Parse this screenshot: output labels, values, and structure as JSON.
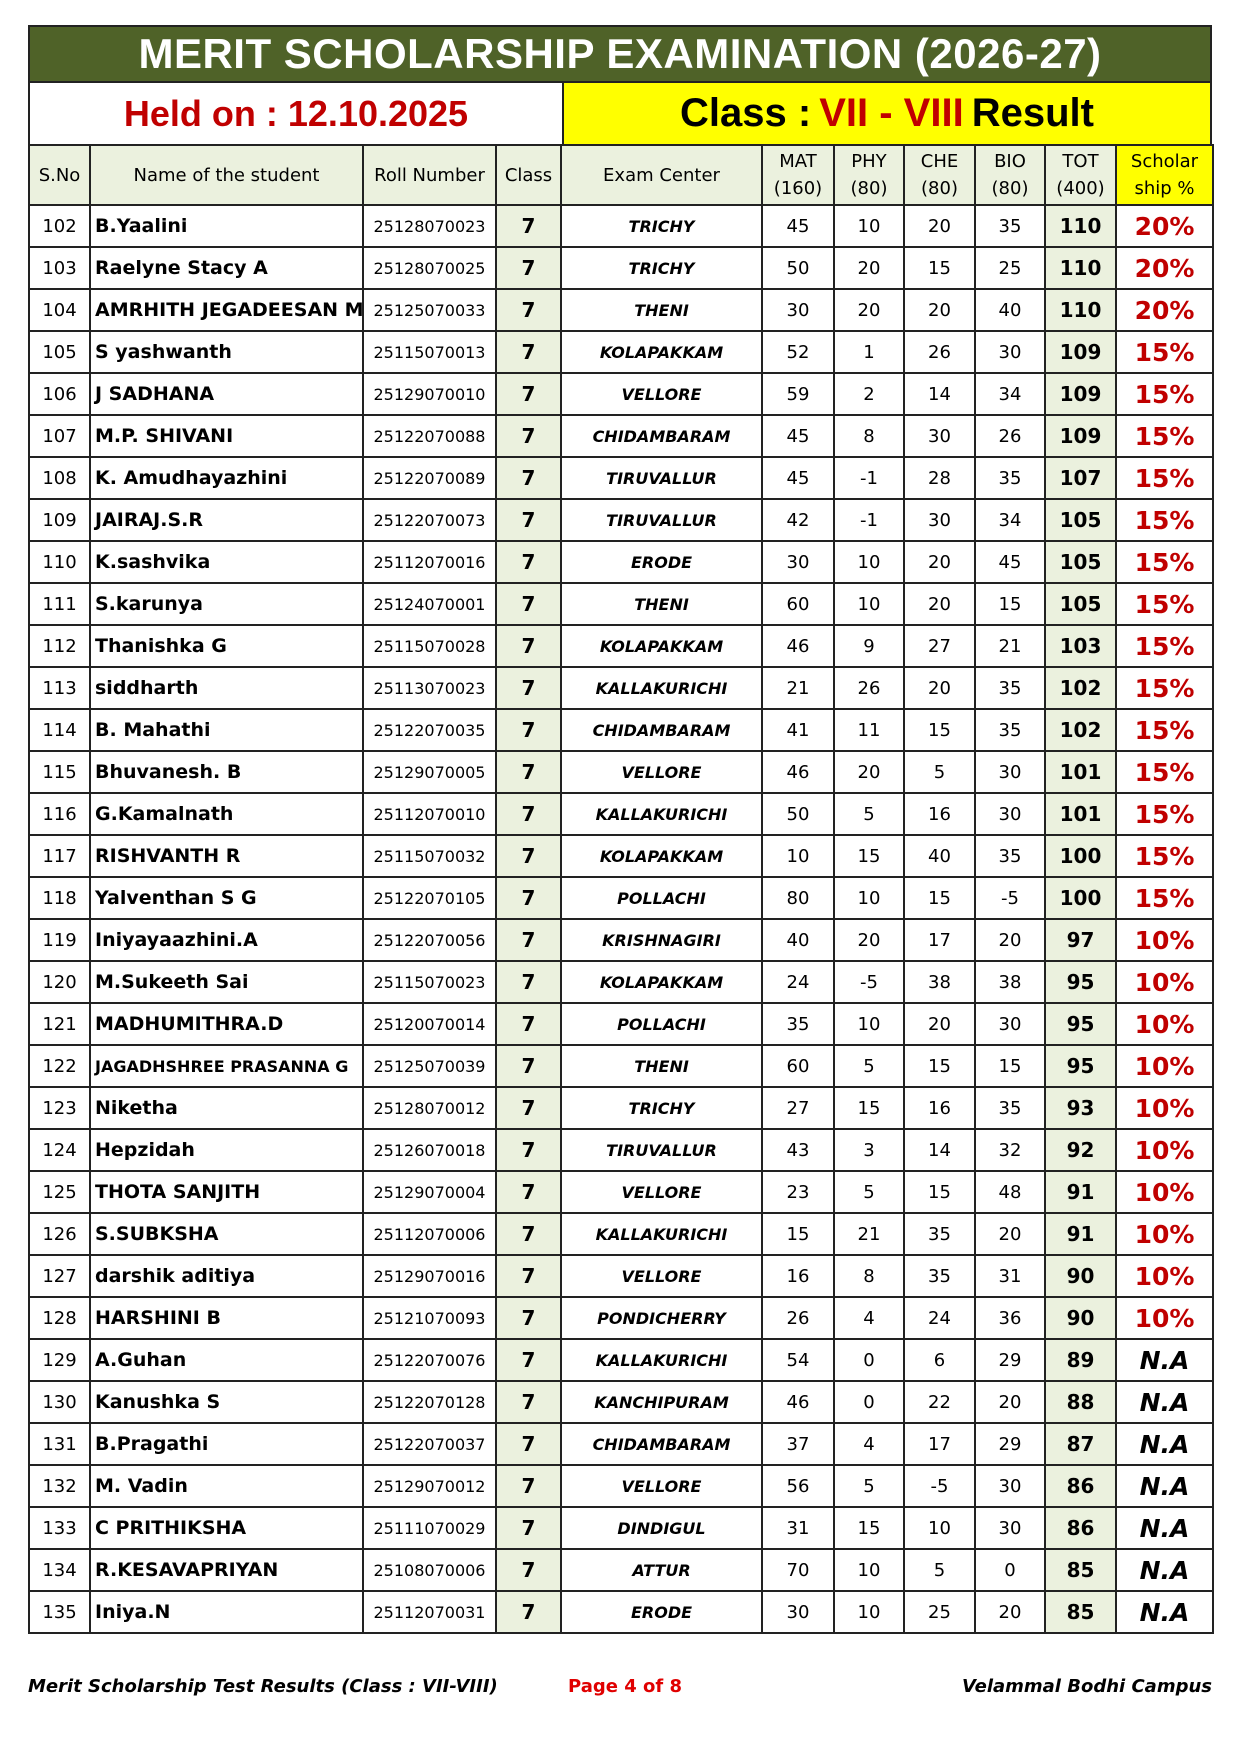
{
  "title": "MERIT SCHOLARSHIP EXAMINATION (2026-27)",
  "held_on": "Held on : 12.10.2025",
  "class_banner": {
    "prefix": "Class :",
    "classes": "VII - VIII",
    "suffix": "Result"
  },
  "headers": [
    "S.No",
    "Name of the student",
    "Roll Number",
    "Class",
    "Exam Center",
    "MAT (160)",
    "PHY (80)",
    "CHE (80)",
    "BIO (80)",
    "TOT (400)",
    "Scholar ship %"
  ],
  "colors": {
    "title_bg": "#4f6228",
    "banner_yellow": "#ffff00",
    "accent_red": "#c00000",
    "header_bg": "#ebf1de"
  },
  "rows": [
    [
      "102",
      "B.Yaalini",
      "25128070023",
      "7",
      "TRICHY",
      "45",
      "10",
      "20",
      "35",
      "110",
      "20%"
    ],
    [
      "103",
      "Raelyne Stacy A",
      "25128070025",
      "7",
      "TRICHY",
      "50",
      "20",
      "15",
      "25",
      "110",
      "20%"
    ],
    [
      "104",
      "AMRHITH JEGADEESAN M",
      "25125070033",
      "7",
      "THENI",
      "30",
      "20",
      "20",
      "40",
      "110",
      "20%"
    ],
    [
      "105",
      "S yashwanth",
      "25115070013",
      "7",
      "KOLAPAKKAM",
      "52",
      "1",
      "26",
      "30",
      "109",
      "15%"
    ],
    [
      "106",
      "J SADHANA",
      "25129070010",
      "7",
      "VELLORE",
      "59",
      "2",
      "14",
      "34",
      "109",
      "15%"
    ],
    [
      "107",
      "M.P. SHIVANI",
      "25122070088",
      "7",
      "CHIDAMBARAM",
      "45",
      "8",
      "30",
      "26",
      "109",
      "15%"
    ],
    [
      "108",
      "K. Amudhayazhini",
      "25122070089",
      "7",
      "TIRUVALLUR",
      "45",
      "-1",
      "28",
      "35",
      "107",
      "15%"
    ],
    [
      "109",
      "JAIRAJ.S.R",
      "25122070073",
      "7",
      "TIRUVALLUR",
      "42",
      "-1",
      "30",
      "34",
      "105",
      "15%"
    ],
    [
      "110",
      "K.sashvika",
      "25112070016",
      "7",
      "ERODE",
      "30",
      "10",
      "20",
      "45",
      "105",
      "15%"
    ],
    [
      "111",
      "S.karunya",
      "25124070001",
      "7",
      "THENI",
      "60",
      "10",
      "20",
      "15",
      "105",
      "15%"
    ],
    [
      "112",
      "Thanishka G",
      "25115070028",
      "7",
      "KOLAPAKKAM",
      "46",
      "9",
      "27",
      "21",
      "103",
      "15%"
    ],
    [
      "113",
      "siddharth",
      "25113070023",
      "7",
      "KALLAKURICHI",
      "21",
      "26",
      "20",
      "35",
      "102",
      "15%"
    ],
    [
      "114",
      "B. Mahathi",
      "25122070035",
      "7",
      "CHIDAMBARAM",
      "41",
      "11",
      "15",
      "35",
      "102",
      "15%"
    ],
    [
      "115",
      "Bhuvanesh. B",
      "25129070005",
      "7",
      "VELLORE",
      "46",
      "20",
      "5",
      "30",
      "101",
      "15%"
    ],
    [
      "116",
      "G.Kamalnath",
      "25112070010",
      "7",
      "KALLAKURICHI",
      "50",
      "5",
      "16",
      "30",
      "101",
      "15%"
    ],
    [
      "117",
      "RISHVANTH R",
      "25115070032",
      "7",
      "KOLAPAKKAM",
      "10",
      "15",
      "40",
      "35",
      "100",
      "15%"
    ],
    [
      "118",
      "Yalventhan S G",
      "25122070105",
      "7",
      "POLLACHI",
      "80",
      "10",
      "15",
      "-5",
      "100",
      "15%"
    ],
    [
      "119",
      "Iniyayaazhini.A",
      "25122070056",
      "7",
      "KRISHNAGIRI",
      "40",
      "20",
      "17",
      "20",
      "97",
      "10%"
    ],
    [
      "120",
      "M.Sukeeth Sai",
      "25115070023",
      "7",
      "KOLAPAKKAM",
      "24",
      "-5",
      "38",
      "38",
      "95",
      "10%"
    ],
    [
      "121",
      "MADHUMITHRA.D",
      "25120070014",
      "7",
      "POLLACHI",
      "35",
      "10",
      "20",
      "30",
      "95",
      "10%"
    ],
    [
      "122",
      "JAGADHSHREE PRASANNA G",
      "25125070039",
      "7",
      "THENI",
      "60",
      "5",
      "15",
      "15",
      "95",
      "10%"
    ],
    [
      "123",
      "Niketha",
      "25128070012",
      "7",
      "TRICHY",
      "27",
      "15",
      "16",
      "35",
      "93",
      "10%"
    ],
    [
      "124",
      "Hepzidah",
      "25126070018",
      "7",
      "TIRUVALLUR",
      "43",
      "3",
      "14",
      "32",
      "92",
      "10%"
    ],
    [
      "125",
      "THOTA SANJITH",
      "25129070004",
      "7",
      "VELLORE",
      "23",
      "5",
      "15",
      "48",
      "91",
      "10%"
    ],
    [
      "126",
      "S.SUBKSHA",
      "25112070006",
      "7",
      "KALLAKURICHI",
      "15",
      "21",
      "35",
      "20",
      "91",
      "10%"
    ],
    [
      "127",
      "darshik aditiya",
      "25129070016",
      "7",
      "VELLORE",
      "16",
      "8",
      "35",
      "31",
      "90",
      "10%"
    ],
    [
      "128",
      "HARSHINI B",
      "25121070093",
      "7",
      "PONDICHERRY",
      "26",
      "4",
      "24",
      "36",
      "90",
      "10%"
    ],
    [
      "129",
      "A.Guhan",
      "25122070076",
      "7",
      "KALLAKURICHI",
      "54",
      "0",
      "6",
      "29",
      "89",
      "N.A"
    ],
    [
      "130",
      "Kanushka S",
      "25122070128",
      "7",
      "KANCHIPURAM",
      "46",
      "0",
      "22",
      "20",
      "88",
      "N.A"
    ],
    [
      "131",
      "B.Pragathi",
      "25122070037",
      "7",
      "CHIDAMBARAM",
      "37",
      "4",
      "17",
      "29",
      "87",
      "N.A"
    ],
    [
      "132",
      "M. Vadin",
      "25129070012",
      "7",
      "VELLORE",
      "56",
      "5",
      "-5",
      "30",
      "86",
      "N.A"
    ],
    [
      "133",
      "C PRITHIKSHA",
      "25111070029",
      "7",
      "DINDIGUL",
      "31",
      "15",
      "10",
      "30",
      "86",
      "N.A"
    ],
    [
      "134",
      "R.KESAVAPRIYAN",
      "25108070006",
      "7",
      "ATTUR",
      "70",
      "10",
      "5",
      "0",
      "85",
      "N.A"
    ],
    [
      "135",
      "Iniya.N",
      "25112070031",
      "7",
      "ERODE",
      "30",
      "10",
      "25",
      "20",
      "85",
      "N.A"
    ]
  ],
  "footer": {
    "left": "Merit Scholarship Test Results (Class : VII-VIII)",
    "page": "Page 4 of 8",
    "right": "Velammal Bodhi Campus"
  }
}
